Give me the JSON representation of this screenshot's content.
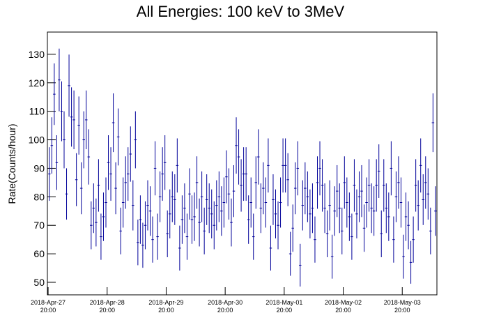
{
  "chart_data": {
    "type": "errorbar",
    "title": "All Energies:  100 keV to 3MeV",
    "y_label": "Rate(Counts/hour)",
    "color": "#000099",
    "x": [
      0,
      1,
      2,
      3,
      4,
      5,
      6,
      7,
      8,
      9,
      10,
      11,
      12,
      13,
      14,
      15,
      16,
      17,
      18,
      19,
      20,
      21,
      22,
      23,
      24,
      25,
      26,
      27,
      28,
      29,
      30,
      31,
      32,
      33,
      34,
      35,
      36,
      37,
      38,
      39,
      40,
      41,
      42,
      43,
      44,
      45,
      46,
      47,
      48,
      49,
      50,
      51,
      52,
      53,
      54,
      55,
      56,
      57,
      58,
      59,
      60,
      61,
      62,
      63,
      64,
      65,
      66,
      67,
      68,
      69,
      70,
      71,
      72,
      73,
      74,
      75,
      76,
      77,
      78,
      79,
      80,
      81,
      82,
      83,
      84,
      85,
      86,
      87,
      88,
      89,
      90,
      91,
      92,
      93,
      94,
      95,
      96,
      97,
      98,
      99,
      100,
      101,
      102,
      103,
      104,
      105,
      106,
      107,
      108,
      109,
      110,
      111,
      112,
      113,
      114,
      115,
      116,
      117,
      118,
      119,
      120,
      121,
      122,
      123,
      124,
      125,
      126,
      127,
      128,
      129,
      130,
      131,
      132,
      133,
      134,
      135,
      136,
      137,
      138,
      139,
      140,
      141,
      142,
      143,
      144,
      145,
      146,
      147,
      148,
      149,
      150,
      151,
      152,
      153,
      154,
      155,
      156,
      157
    ],
    "values": [
      88,
      98,
      116,
      92,
      121,
      110,
      100,
      81,
      119,
      108,
      107,
      86,
      105,
      83,
      100,
      107,
      94,
      70,
      76,
      71,
      84,
      66,
      73,
      78,
      92,
      88,
      106,
      83,
      101,
      68,
      78,
      85,
      88,
      95,
      77,
      100,
      64,
      72,
      63,
      70,
      77,
      75,
      65,
      90,
      66,
      80,
      88,
      92,
      67,
      74,
      80,
      79,
      91,
      62,
      72,
      76,
      66,
      81,
      72,
      73,
      85,
      71,
      80,
      68,
      79,
      76,
      74,
      70,
      77,
      80,
      75,
      78,
      87,
      81,
      71,
      82,
      98,
      94,
      84,
      88,
      88,
      72,
      78,
      66,
      85,
      94,
      76,
      83,
      78,
      91,
      62,
      79,
      74,
      70,
      78,
      91,
      91,
      86,
      60,
      69,
      83,
      90,
      56,
      77,
      83,
      80,
      74,
      76,
      65,
      85,
      90,
      84,
      76,
      67,
      77,
      59,
      75,
      82,
      76,
      68,
      85,
      78,
      73,
      66,
      84,
      74,
      80,
      82,
      69,
      78,
      84,
      76,
      75,
      84,
      89,
      67,
      84,
      76,
      73,
      90,
      65,
      80,
      85,
      78,
      59,
      73,
      70,
      57,
      65,
      84,
      77,
      91,
      79,
      85,
      81,
      68,
      106,
      75
    ],
    "errors": [
      9.4,
      9.9,
      10.8,
      9.6,
      11,
      10.5,
      10,
      9,
      10.9,
      10.4,
      10.3,
      9.3,
      10.2,
      9.1,
      10,
      10.3,
      9.7,
      8.4,
      8.7,
      8.4,
      9.2,
      8.1,
      8.5,
      8.8,
      9.6,
      9.4,
      10.3,
      9.1,
      10,
      8.2,
      8.8,
      9.2,
      9.4,
      9.7,
      8.8,
      10,
      8,
      8.5,
      7.9,
      8.4,
      8.8,
      8.7,
      8.1,
      9.5,
      8.1,
      8.9,
      9.4,
      9.6,
      8.2,
      8.6,
      8.9,
      8.9,
      9.5,
      7.9,
      8.5,
      8.7,
      8.1,
      9,
      8.5,
      8.5,
      9.2,
      8.4,
      8.9,
      8.2,
      8.9,
      8.7,
      8.6,
      8.4,
      8.8,
      8.9,
      8.7,
      8.8,
      9.3,
      9,
      8.4,
      9.1,
      9.9,
      9.7,
      9.2,
      9.4,
      9.4,
      8.5,
      8.8,
      8.1,
      9.2,
      9.7,
      8.7,
      9.1,
      8.8,
      9.5,
      7.9,
      8.9,
      8.6,
      8.4,
      8.8,
      9.5,
      9.5,
      9.3,
      7.7,
      8.3,
      9.1,
      9.5,
      7.5,
      8.8,
      9.1,
      8.9,
      8.6,
      8.7,
      8.1,
      9.2,
      9.5,
      9.2,
      8.7,
      8.2,
      8.8,
      7.7,
      8.7,
      9.1,
      8.7,
      8.2,
      9.2,
      8.8,
      8.5,
      8.1,
      9.2,
      8.6,
      8.9,
      9.1,
      8.3,
      8.8,
      9.2,
      8.7,
      8.7,
      9.2,
      9.4,
      8.2,
      9.2,
      8.7,
      8.5,
      9.5,
      8.1,
      8.9,
      9.2,
      8.8,
      7.7,
      8.5,
      8.4,
      7.5,
      8.1,
      9.2,
      8.8,
      9.5,
      8.9,
      9.2,
      9,
      8.2,
      10.3,
      8.7
    ],
    "xlim": [
      -0.8,
      157.6
    ],
    "xticks": [
      {
        "value": -0.5,
        "label": "2018-Apr-27 20:00"
      },
      {
        "value": 23.5,
        "label": "2018-Apr-28 20:00"
      },
      {
        "value": 47.5,
        "label": "2018-Apr-29 20:00"
      },
      {
        "value": 71.5,
        "label": "2018-Apr-30 20:00"
      },
      {
        "value": 95.5,
        "label": "2018-May-01 20:00"
      },
      {
        "value": 119.5,
        "label": "2018-May-02 20:00"
      },
      {
        "value": 143.5,
        "label": "2018-May-03 20:00"
      }
    ],
    "ylim": [
      45.6,
      137.8
    ],
    "yticks": [
      50,
      60,
      70,
      80,
      90,
      100,
      110,
      120,
      130
    ]
  }
}
